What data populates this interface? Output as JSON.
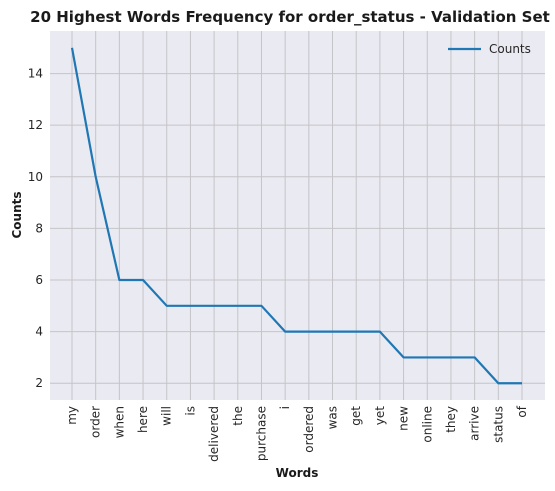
{
  "chart_data": {
    "type": "line",
    "title": "20 Highest Words Frequency for order_status - Validation Set",
    "xlabel": "Words",
    "ylabel": "Counts",
    "categories": [
      "my",
      "order",
      "when",
      "here",
      "will",
      "is",
      "delivered",
      "the",
      "purchase",
      "i",
      "ordered",
      "was",
      "get",
      "yet",
      "new",
      "online",
      "they",
      "arrive",
      "status",
      "of"
    ],
    "series": [
      {
        "name": "Counts",
        "values": [
          15,
          10,
          6,
          6,
          5,
          5,
          5,
          5,
          5,
          4,
          4,
          4,
          4,
          4,
          3,
          3,
          3,
          3,
          2,
          2
        ]
      }
    ],
    "ylim": [
      1.35,
      15.65
    ],
    "yticks": [
      2,
      4,
      6,
      8,
      10,
      12,
      14
    ],
    "grid": true,
    "legend": "top-right",
    "colors": {
      "line": "#1f77b4",
      "plot_bg": "#eaeaf2",
      "grid": "#c4c4c8"
    }
  }
}
